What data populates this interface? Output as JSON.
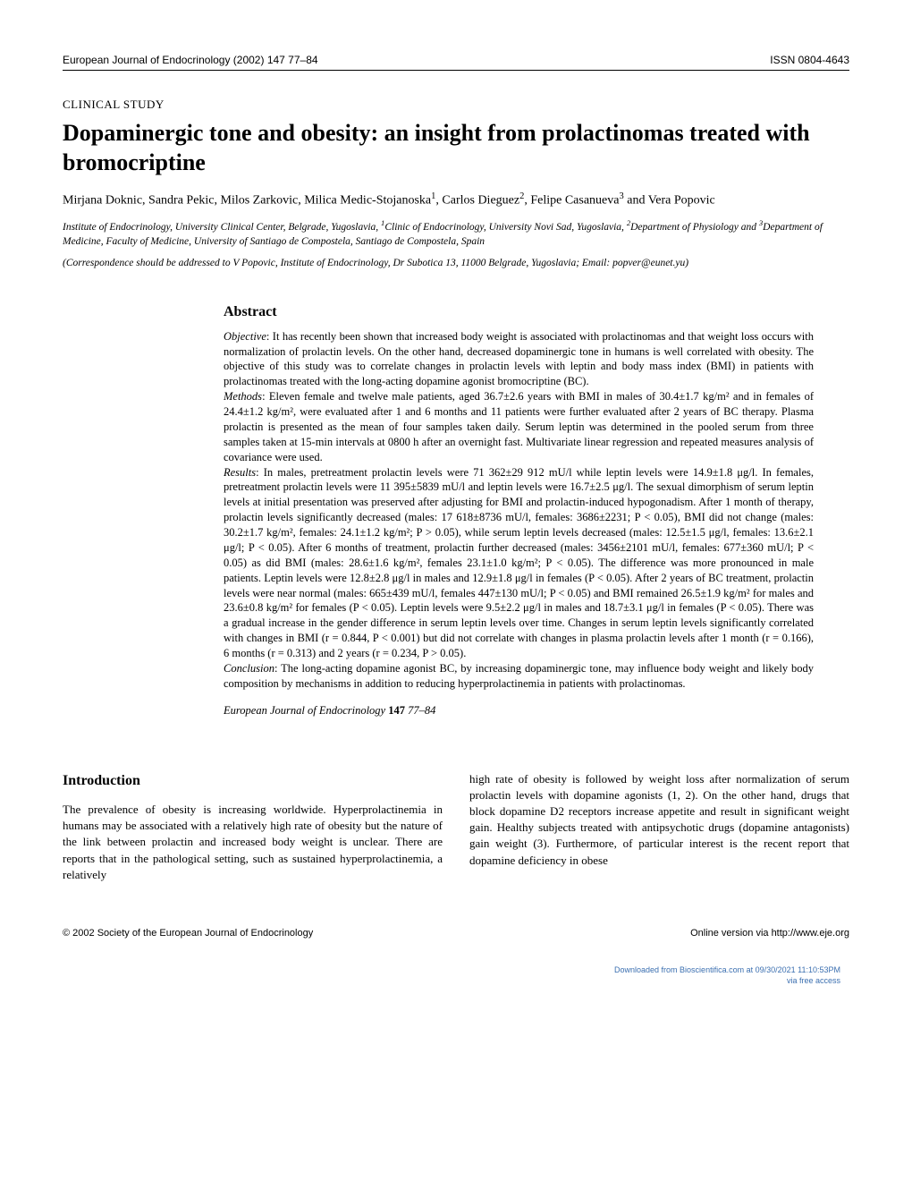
{
  "header": {
    "journal_cite": "European Journal of Endocrinology (2002) 147 77–84",
    "issn": "ISSN 0804-4643"
  },
  "study_type": "CLINICAL STUDY",
  "title": "Dopaminergic tone and obesity: an insight from prolactinomas treated with bromocriptine",
  "authors_html": "Mirjana Doknic, Sandra Pekic, Milos Zarkovic, Milica Medic-Stojanoska<sup>1</sup>, Carlos Dieguez<sup>2</sup>, Felipe Casanueva<sup>3</sup> and Vera Popovic",
  "affiliations_html": "Institute of Endocrinology, University Clinical Center, Belgrade, Yugoslavia, <sup>1</sup>Clinic of Endocrinology, University Novi Sad, Yugoslavia, <sup>2</sup>Department of Physiology and <sup>3</sup>Department of Medicine, Faculty of Medicine, University of Santiago de Compostela, Santiago de Compostela, Spain",
  "correspondence": "(Correspondence should be addressed to V Popovic, Institute of Endocrinology, Dr Subotica 13, 11000 Belgrade, Yugoslavia; Email: popver@eunet.yu)",
  "abstract": {
    "heading": "Abstract",
    "objective_label": "Objective",
    "objective": ": It has recently been shown that increased body weight is associated with prolactinomas and that weight loss occurs with normalization of prolactin levels. On the other hand, decreased dopaminergic tone in humans is well correlated with obesity. The objective of this study was to correlate changes in prolactin levels with leptin and body mass index (BMI) in patients with prolactinomas treated with the long-acting dopamine agonist bromocriptine (BC).",
    "methods_label": "Methods",
    "methods": ": Eleven female and twelve male patients, aged 36.7±2.6 years with BMI in males of 30.4±1.7 kg/m² and in females of 24.4±1.2 kg/m², were evaluated after 1 and 6 months and 11 patients were further evaluated after 2 years of BC therapy. Plasma prolactin is presented as the mean of four samples taken daily. Serum leptin was determined in the pooled serum from three samples taken at 15-min intervals at 0800 h after an overnight fast. Multivariate linear regression and repeated measures analysis of covariance were used.",
    "results_label": "Results",
    "results": ": In males, pretreatment prolactin levels were 71 362±29 912 mU/l while leptin levels were 14.9±1.8 μg/l. In females, pretreatment prolactin levels were 11 395±5839 mU/l and leptin levels were 16.7±2.5 μg/l. The sexual dimorphism of serum leptin levels at initial presentation was preserved after adjusting for BMI and prolactin-induced hypogonadism. After 1 month of therapy, prolactin levels significantly decreased (males: 17 618±8736 mU/l, females: 3686±2231; P < 0.05), BMI did not change (males: 30.2±1.7 kg/m², females: 24.1±1.2 kg/m²; P > 0.05), while serum leptin levels decreased (males: 12.5±1.5 μg/l, females: 13.6±2.1 μg/l; P < 0.05). After 6 months of treatment, prolactin further decreased (males: 3456±2101 mU/l, females: 677±360 mU/l; P < 0.05) as did BMI (males: 28.6±1.6 kg/m², females 23.1±1.0 kg/m²; P < 0.05). The difference was more pronounced in male patients. Leptin levels were 12.8±2.8 μg/l in males and 12.9±1.8 μg/l in females (P < 0.05). After 2 years of BC treatment, prolactin levels were near normal (males: 665±439 mU/l, females 447±130 mU/l; P < 0.05) and BMI remained 26.5±1.9 kg/m² for males and 23.6±0.8 kg/m² for females (P < 0.05). Leptin levels were 9.5±2.2 μg/l in males and 18.7±3.1 μg/l in females (P < 0.05). There was a gradual increase in the gender difference in serum leptin levels over time. Changes in serum leptin levels significantly correlated with changes in BMI (r = 0.844, P < 0.001) but did not correlate with changes in plasma prolactin levels after 1 month (r = 0.166), 6 months (r = 0.313) and 2 years (r = 0.234, P > 0.05).",
    "conclusion_label": "Conclusion",
    "conclusion": ": The long-acting dopamine agonist BC, by increasing dopaminergic tone, may influence body weight and likely body composition by mechanisms in addition to reducing hyperprolactinemia in patients with prolactinomas.",
    "citation_journal": "European Journal of Endocrinology ",
    "citation_vol": "147",
    "citation_pages": " 77–84"
  },
  "intro": {
    "heading": "Introduction",
    "col1": "The prevalence of obesity is increasing worldwide. Hyperprolactinemia in humans may be associated with a relatively high rate of obesity but the nature of the link between prolactin and increased body weight is unclear. There are reports that in the pathological setting, such as sustained hyperprolactinemia, a relatively",
    "col2": "high rate of obesity is followed by weight loss after normalization of serum prolactin levels with dopamine agonists (1, 2). On the other hand, drugs that block dopamine D2 receptors increase appetite and result in significant weight gain. Healthy subjects treated with antipsychotic drugs (dopamine antagonists) gain weight (3). Furthermore, of particular interest is the recent report that dopamine deficiency in obese"
  },
  "footer": {
    "copyright": "© 2002 Society of the European Journal of Endocrinology",
    "online": "Online version via http://www.eje.org"
  },
  "download": {
    "line1": "Downloaded from Bioscientifica.com at 09/30/2021 11:10:53PM",
    "line2": "via free access"
  }
}
